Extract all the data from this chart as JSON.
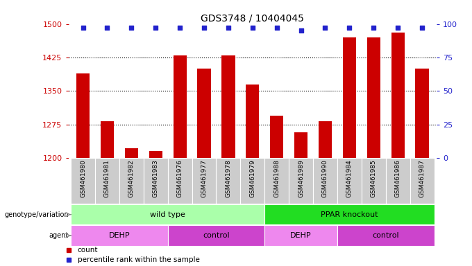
{
  "title": "GDS3748 / 10404045",
  "samples": [
    "GSM461980",
    "GSM461981",
    "GSM461982",
    "GSM461983",
    "GSM461976",
    "GSM461977",
    "GSM461978",
    "GSM461979",
    "GSM461988",
    "GSM461989",
    "GSM461990",
    "GSM461984",
    "GSM461985",
    "GSM461986",
    "GSM461987"
  ],
  "counts": [
    1390,
    1282,
    1222,
    1215,
    1430,
    1400,
    1430,
    1365,
    1295,
    1258,
    1282,
    1470,
    1470,
    1480,
    1400
  ],
  "percentile_ranks": [
    97,
    97,
    97,
    97,
    97,
    97,
    97,
    97,
    97,
    95,
    97,
    97,
    97,
    97,
    97
  ],
  "ylim_left": [
    1200,
    1500
  ],
  "ylim_right": [
    0,
    100
  ],
  "yticks_left": [
    1200,
    1275,
    1350,
    1425,
    1500
  ],
  "yticks_right": [
    0,
    25,
    50,
    75,
    100
  ],
  "bar_color": "#cc0000",
  "dot_color": "#2222cc",
  "genotype_groups": [
    {
      "label": "wild type",
      "start": 0,
      "end": 8,
      "color": "#aaffaa"
    },
    {
      "label": "PPAR knockout",
      "start": 8,
      "end": 15,
      "color": "#22dd22"
    }
  ],
  "agent_groups": [
    {
      "label": "DEHP",
      "start": 0,
      "end": 4,
      "color": "#ee88ee"
    },
    {
      "label": "control",
      "start": 4,
      "end": 8,
      "color": "#cc44cc"
    },
    {
      "label": "DEHP",
      "start": 8,
      "end": 11,
      "color": "#ee88ee"
    },
    {
      "label": "control",
      "start": 11,
      "end": 15,
      "color": "#cc44cc"
    }
  ],
  "left_label_color": "#cc0000",
  "right_label_color": "#2222cc",
  "xtick_bg_color": "#cccccc",
  "plot_bg_color": "#ffffff"
}
